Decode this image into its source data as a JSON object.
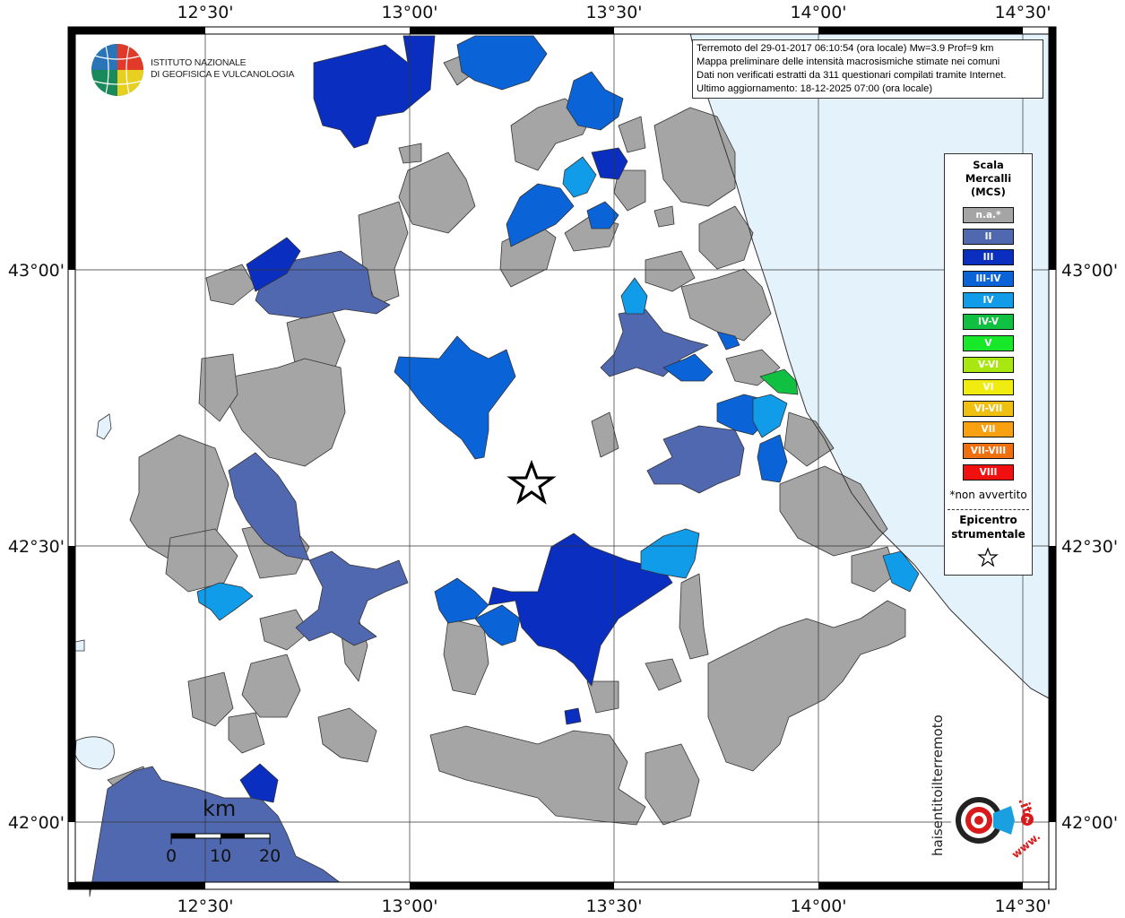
{
  "institute": {
    "line1": "ISTITUTO NAZIONALE",
    "line2": "DI GEOFISICA E VULCANOLOGIA"
  },
  "info": {
    "line1": "Terremoto del 29-01-2017 06:10:54 (ora locale) Mw=3.9 Prof=9 km",
    "line2": "Mappa preliminare delle intensità macrosismiche stimate nei comuni",
    "line3": "Dati non verificati estratti da 311 questionari compilati tramite Internet.",
    "line4": "Ultimo aggiornamento: 18-12-2025 07:00 (ora locale)"
  },
  "axes": {
    "lon_labels": [
      "12°30'",
      "13°00'",
      "13°30'",
      "14°00'",
      "14°30'"
    ],
    "lat_labels": [
      "43°00'",
      "42°30'",
      "42°00'"
    ]
  },
  "legend": {
    "title": [
      "Scala",
      "Mercalli",
      "(MCS)"
    ],
    "items": [
      {
        "label": "n.a.*",
        "color": "#a5a5a5"
      },
      {
        "label": "II",
        "color": "#5068b0"
      },
      {
        "label": "III",
        "color": "#0a2ec0"
      },
      {
        "label": "III-IV",
        "color": "#0a64d8"
      },
      {
        "label": "IV",
        "color": "#109ce8"
      },
      {
        "label": "IV-V",
        "color": "#10c040"
      },
      {
        "label": "V",
        "color": "#18e82a"
      },
      {
        "label": "V-VI",
        "color": "#a8e810"
      },
      {
        "label": "VI",
        "color": "#f0ec10"
      },
      {
        "label": "VI-VII",
        "color": "#f0c010"
      },
      {
        "label": "VII",
        "color": "#f8a010"
      },
      {
        "label": "VII-VIII",
        "color": "#f07010"
      },
      {
        "label": "VIII",
        "color": "#f01010"
      }
    ],
    "note": "*non avvertito",
    "epicenter_label": [
      "Epicentro",
      "strumentale"
    ]
  },
  "scale_bar": {
    "unit": "km",
    "ticks": [
      "0",
      "10",
      "20"
    ]
  },
  "site_logo": {
    "text_main": "haisentitoilterremoto",
    "text_it": ".it",
    "text_www": "www.",
    "text_q": "?"
  },
  "colors": {
    "sea": "#e4f3fb",
    "na": "#a5a5a5",
    "II": "#5068b0",
    "III": "#0a2ec0",
    "III_IV": "#0a64d8",
    "IV": "#109ce8",
    "IV_V": "#10c040"
  }
}
